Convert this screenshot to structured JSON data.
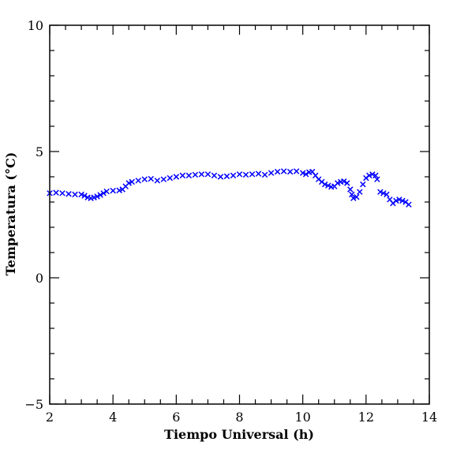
{
  "chart_data": {
    "type": "scatter",
    "title": "",
    "xlabel": "Tiempo Universal (h)",
    "ylabel": "Temperatura (°C)",
    "xlim": [
      2,
      14
    ],
    "ylim": [
      -5,
      10
    ],
    "x_ticks": [
      2,
      4,
      6,
      8,
      10,
      12,
      14
    ],
    "y_ticks": [
      -5,
      0,
      5,
      10
    ],
    "x_tick_labels": [
      "2",
      "4",
      "6",
      "8",
      "10",
      "12",
      "14"
    ],
    "y_tick_labels": [
      "−5",
      "0",
      "5",
      "10"
    ],
    "grid": false,
    "marker": "x",
    "marker_color": "#0000ff",
    "series": [
      {
        "points": [
          [
            2.0,
            3.35
          ],
          [
            2.2,
            3.37
          ],
          [
            2.4,
            3.35
          ],
          [
            2.6,
            3.32
          ],
          [
            2.8,
            3.3
          ],
          [
            3.0,
            3.3
          ],
          [
            3.1,
            3.25
          ],
          [
            3.2,
            3.18
          ],
          [
            3.3,
            3.15
          ],
          [
            3.4,
            3.18
          ],
          [
            3.5,
            3.22
          ],
          [
            3.6,
            3.28
          ],
          [
            3.7,
            3.35
          ],
          [
            3.8,
            3.42
          ],
          [
            4.0,
            3.45
          ],
          [
            4.2,
            3.46
          ],
          [
            4.3,
            3.5
          ],
          [
            4.4,
            3.62
          ],
          [
            4.5,
            3.75
          ],
          [
            4.6,
            3.8
          ],
          [
            4.8,
            3.85
          ],
          [
            5.0,
            3.9
          ],
          [
            5.2,
            3.92
          ],
          [
            5.4,
            3.85
          ],
          [
            5.6,
            3.9
          ],
          [
            5.8,
            3.95
          ],
          [
            6.0,
            4.0
          ],
          [
            6.2,
            4.05
          ],
          [
            6.4,
            4.05
          ],
          [
            6.6,
            4.08
          ],
          [
            6.8,
            4.1
          ],
          [
            7.0,
            4.1
          ],
          [
            7.2,
            4.05
          ],
          [
            7.4,
            4.0
          ],
          [
            7.6,
            4.02
          ],
          [
            7.8,
            4.05
          ],
          [
            8.0,
            4.1
          ],
          [
            8.2,
            4.08
          ],
          [
            8.4,
            4.1
          ],
          [
            8.6,
            4.12
          ],
          [
            8.8,
            4.08
          ],
          [
            9.0,
            4.15
          ],
          [
            9.2,
            4.2
          ],
          [
            9.4,
            4.22
          ],
          [
            9.6,
            4.2
          ],
          [
            9.8,
            4.22
          ],
          [
            10.0,
            4.15
          ],
          [
            10.1,
            4.1
          ],
          [
            10.2,
            4.18
          ],
          [
            10.3,
            4.2
          ],
          [
            10.4,
            4.05
          ],
          [
            10.5,
            3.9
          ],
          [
            10.6,
            3.8
          ],
          [
            10.7,
            3.7
          ],
          [
            10.8,
            3.65
          ],
          [
            10.9,
            3.6
          ],
          [
            11.0,
            3.62
          ],
          [
            11.1,
            3.75
          ],
          [
            11.2,
            3.8
          ],
          [
            11.3,
            3.82
          ],
          [
            11.4,
            3.75
          ],
          [
            11.5,
            3.5
          ],
          [
            11.55,
            3.3
          ],
          [
            11.6,
            3.15
          ],
          [
            11.7,
            3.2
          ],
          [
            11.8,
            3.4
          ],
          [
            11.9,
            3.7
          ],
          [
            12.0,
            3.95
          ],
          [
            12.1,
            4.05
          ],
          [
            12.2,
            4.1
          ],
          [
            12.3,
            4.05
          ],
          [
            12.35,
            3.9
          ],
          [
            12.45,
            3.4
          ],
          [
            12.55,
            3.35
          ],
          [
            12.65,
            3.3
          ],
          [
            12.75,
            3.1
          ],
          [
            12.85,
            2.95
          ],
          [
            12.95,
            3.05
          ],
          [
            13.05,
            3.1
          ],
          [
            13.15,
            3.05
          ],
          [
            13.25,
            3.0
          ],
          [
            13.35,
            2.9
          ]
        ]
      }
    ]
  }
}
